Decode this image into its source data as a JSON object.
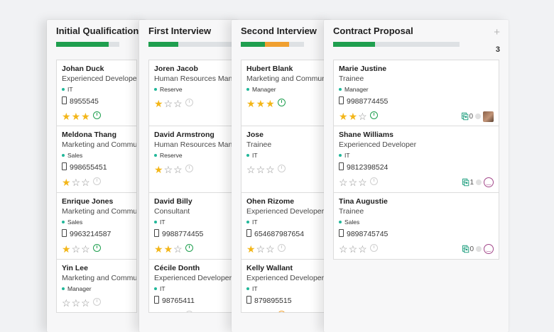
{
  "columns": [
    {
      "title": "Initial Qualification",
      "progress": {
        "green": 0.83,
        "orange": 0
      },
      "cards": [
        {
          "name": "Johan Duck",
          "job": "Experienced Developer",
          "tag": "IT",
          "phone": "8955545",
          "stars": 3,
          "activity": "green"
        },
        {
          "name": "Meldona Thang",
          "job": "Marketing and Communi",
          "tag": "Sales",
          "phone": "998655451",
          "stars": 1,
          "activity": "grey"
        },
        {
          "name": "Enrique Jones",
          "job": "Marketing and Communi",
          "tag": "Sales",
          "phone": "9963214587",
          "stars": 1,
          "activity": "green"
        },
        {
          "name": "Yin Lee",
          "job": "Marketing and Communi",
          "tag": "Manager",
          "phone": "",
          "stars": 0,
          "activity": "grey"
        }
      ]
    },
    {
      "title": "First Interview",
      "progress": {
        "green": 0.36,
        "orange": 0
      },
      "cards": [
        {
          "name": "Joren Jacob",
          "job": "Human Resources Mana",
          "tag": "Reserve",
          "phone": "",
          "stars": 1,
          "activity": "grey"
        },
        {
          "name": "David Armstrong",
          "job": "Human Resources Mana",
          "tag": "Reserve",
          "phone": "",
          "stars": 1,
          "activity": "grey"
        },
        {
          "name": "David Billy",
          "job": "Consultant",
          "tag": "IT",
          "phone": "9988774455",
          "stars": 2,
          "activity": "green"
        },
        {
          "name": "Cécile Donth",
          "job": "Experienced Developer",
          "tag": "IT",
          "phone": "98765411",
          "stars": 0,
          "activity": "grey"
        }
      ]
    },
    {
      "title": "Second Interview",
      "progress": {
        "green": 0.38,
        "orange": 0.38
      },
      "cards": [
        {
          "name": "Hubert Blank",
          "job": "Marketing and Communi",
          "tag": "Manager",
          "phone": "",
          "stars": 3,
          "activity": "green"
        },
        {
          "name": "Jose",
          "job": "Trainee",
          "tag": "IT",
          "phone": "",
          "stars": 0,
          "activity": "grey"
        },
        {
          "name": "Ohen Rizome",
          "job": "Experienced Developer",
          "tag": "IT",
          "phone": "654687987654",
          "stars": 1,
          "activity": "grey"
        },
        {
          "name": "Kelly Wallant",
          "job": "Experienced Developer",
          "tag": "IT",
          "phone": "879895515",
          "stars": 0,
          "activity": "orange"
        }
      ]
    },
    {
      "title": "Contract Proposal",
      "count": "3",
      "plus": "+",
      "progress": {
        "green": 0.33,
        "orange": 0
      },
      "cards": [
        {
          "name": "Marie Justine",
          "job": "Trainee",
          "tag": "Manager",
          "phone": "9988774455",
          "stars": 2,
          "activity": "green",
          "attachments": "0",
          "avatar": "photo"
        },
        {
          "name": "Shane Williams",
          "job": "Experienced Developer",
          "tag": "IT",
          "phone": "9812398524",
          "stars": 0,
          "activity": "grey",
          "attachments": "1",
          "avatar": "smile"
        },
        {
          "name": "Tina Augustie",
          "job": "Trainee",
          "tag": "Sales",
          "phone": "9898745745",
          "stars": 0,
          "activity": "grey",
          "attachments": "0",
          "avatar": "smile"
        }
      ]
    }
  ],
  "colors": {
    "green": "#1f9f4f",
    "orange": "#f0a030",
    "star": "#f3b619"
  }
}
